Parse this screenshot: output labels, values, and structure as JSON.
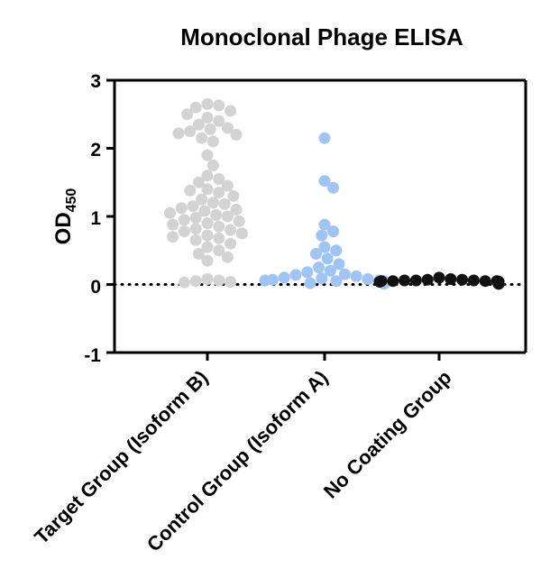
{
  "chart_data": {
    "type": "scatter",
    "title": "Monoclonal Phage ELISA",
    "ylabel_main": "OD",
    "ylabel_sub": "450",
    "ylim": [
      -1,
      3
    ],
    "yticks": [
      "3",
      "2",
      "1",
      "0",
      "-1"
    ],
    "reference_line": {
      "y": 0,
      "style": "dotted"
    },
    "categories": [
      "Target Group (Isoform B)",
      "Control Group (Isoform A)",
      "No Coating Group"
    ],
    "series": [
      {
        "color": "#d3d3d3",
        "values": [
          2.65,
          2.63,
          2.6,
          2.55,
          2.5,
          2.45,
          2.4,
          2.35,
          2.3,
          2.28,
          2.25,
          2.22,
          2.2,
          2.15,
          2.1,
          1.9,
          1.75,
          1.6,
          1.55,
          1.5,
          1.45,
          1.4,
          1.38,
          1.35,
          1.3,
          1.25,
          1.2,
          1.18,
          1.15,
          1.12,
          1.1,
          1.08,
          1.05,
          1.02,
          1.0,
          0.98,
          0.95,
          0.93,
          0.9,
          0.88,
          0.85,
          0.82,
          0.8,
          0.78,
          0.75,
          0.72,
          0.7,
          0.68,
          0.65,
          0.6,
          0.55,
          0.5,
          0.45,
          0.4,
          0.35,
          0.08,
          0.06,
          0.05,
          0.04,
          0.03
        ]
      },
      {
        "color": "#9ec5f5",
        "values": [
          2.15,
          1.52,
          1.42,
          0.88,
          0.78,
          0.72,
          0.55,
          0.5,
          0.45,
          0.38,
          0.3,
          0.25,
          0.2,
          0.18,
          0.15,
          0.14,
          0.12,
          0.1,
          0.09,
          0.08,
          0.07,
          0.06,
          0.06,
          0.05,
          0.05,
          0.04,
          0.04,
          0.03,
          0.03,
          0.02,
          0.02,
          0.02,
          0.01,
          0.01
        ]
      },
      {
        "color": "#111111",
        "values": [
          0.1,
          0.08,
          0.07,
          0.07,
          0.06,
          0.06,
          0.06,
          0.05,
          0.05,
          0.05,
          0.05,
          0.04,
          0.04,
          0.04,
          0.04,
          0.04,
          0.03,
          0.03,
          0.03,
          0.03,
          0.03,
          0.03,
          0.02,
          0.02,
          0.02,
          0.02,
          0.02,
          0.01,
          0.01,
          0.01
        ]
      }
    ]
  }
}
